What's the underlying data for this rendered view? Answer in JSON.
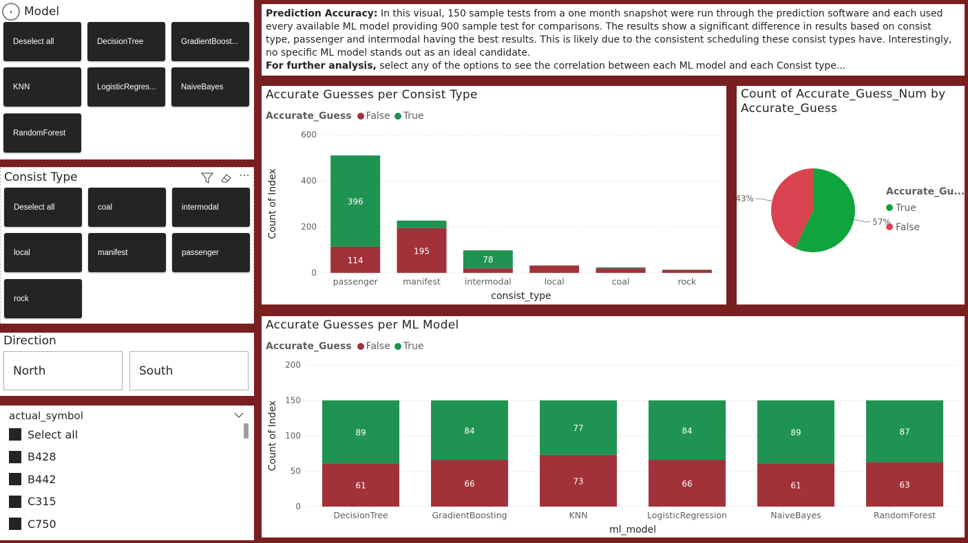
{
  "colors": {
    "background": "#7a1f1f",
    "tile": "#252423",
    "true": "#1f9351",
    "false": "#a1323a",
    "pie_true": "#10a53c",
    "pie_false": "#d9434f"
  },
  "model_slicer": {
    "title": "Model",
    "icon": "back-arrow-icon",
    "tiles": [
      "Deselect all",
      "DecisionTree",
      "GradientBoost...",
      "KNN",
      "LogisticRegres...",
      "NaiveBayes",
      "RandomForest"
    ]
  },
  "consist_slicer": {
    "title": "Consist Type",
    "icons": [
      "filter-icon",
      "eraser-icon",
      "more-options-icon"
    ],
    "tiles": [
      "Deselect all",
      "coal",
      "intermodal",
      "local",
      "manifest",
      "passenger",
      "rock"
    ]
  },
  "direction_slicer": {
    "title": "Direction",
    "options": [
      "North",
      "South"
    ]
  },
  "symbol_slicer": {
    "title": "actual_symbol",
    "items": [
      "Select all",
      "B428",
      "B442",
      "C315",
      "C750"
    ]
  },
  "description": {
    "lead1": "Prediction Accuracy:",
    "text1": " In this visual, 150 sample tests from a one month snapshot were run through the prediction software and each used every available ML model providing 900 sample test for comparisons. The results show a significant difference in results based on consist type, passenger and intermodal having the best results. This is likely due to the consistent scheduling these consist types have. Interestingly, no specific ML model stands out as an ideal candidate.",
    "lead2": "For further analysis,",
    "text2": " select any of the options to see the correlation between each ML model and each Consist type..."
  },
  "legend": {
    "field": "Accurate_Guess",
    "false_label": "False",
    "true_label": "True"
  },
  "chart_data": [
    {
      "type": "bar",
      "title": "Accurate Guesses per Consist Type",
      "xlabel": "consist_type",
      "ylabel": "Count of Index",
      "categories": [
        "passenger",
        "manifest",
        "intermodal",
        "local",
        "coal",
        "rock"
      ],
      "series": [
        {
          "name": "False",
          "values": [
            114,
            195,
            20,
            32,
            20,
            13
          ],
          "labels": [
            "114",
            "195",
            "",
            "",
            "",
            ""
          ]
        },
        {
          "name": "True",
          "values": [
            396,
            32,
            78,
            0,
            4,
            1
          ],
          "labels": [
            "396",
            "",
            "78",
            "",
            "",
            ""
          ]
        }
      ],
      "ylim": [
        0,
        600
      ],
      "yticks": [
        0,
        200,
        400,
        600
      ],
      "stacked": true,
      "grid": true,
      "legend_position": "top-left"
    },
    {
      "type": "pie",
      "title": "Count of Accurate_Guess_Num by Accurate_Guess",
      "legend_title": "Accurate_Gu...",
      "slices": [
        {
          "name": "True",
          "value": 57,
          "label": "57%"
        },
        {
          "name": "False",
          "value": 43,
          "label": "43%"
        }
      ],
      "legend_position": "right"
    },
    {
      "type": "bar",
      "title": "Accurate Guesses per ML Model",
      "xlabel": "ml_model",
      "ylabel": "Count of Index",
      "categories": [
        "DecisionTree",
        "GradientBoosting",
        "KNN",
        "LogisticRegression",
        "NaiveBayes",
        "RandomForest"
      ],
      "series": [
        {
          "name": "False",
          "values": [
            61,
            66,
            73,
            66,
            61,
            63
          ]
        },
        {
          "name": "True",
          "values": [
            89,
            84,
            77,
            84,
            89,
            87
          ]
        }
      ],
      "ylim": [
        0,
        200
      ],
      "yticks": [
        0,
        50,
        100,
        150,
        200
      ],
      "stacked": true,
      "grid": true,
      "legend_position": "top-left"
    }
  ]
}
